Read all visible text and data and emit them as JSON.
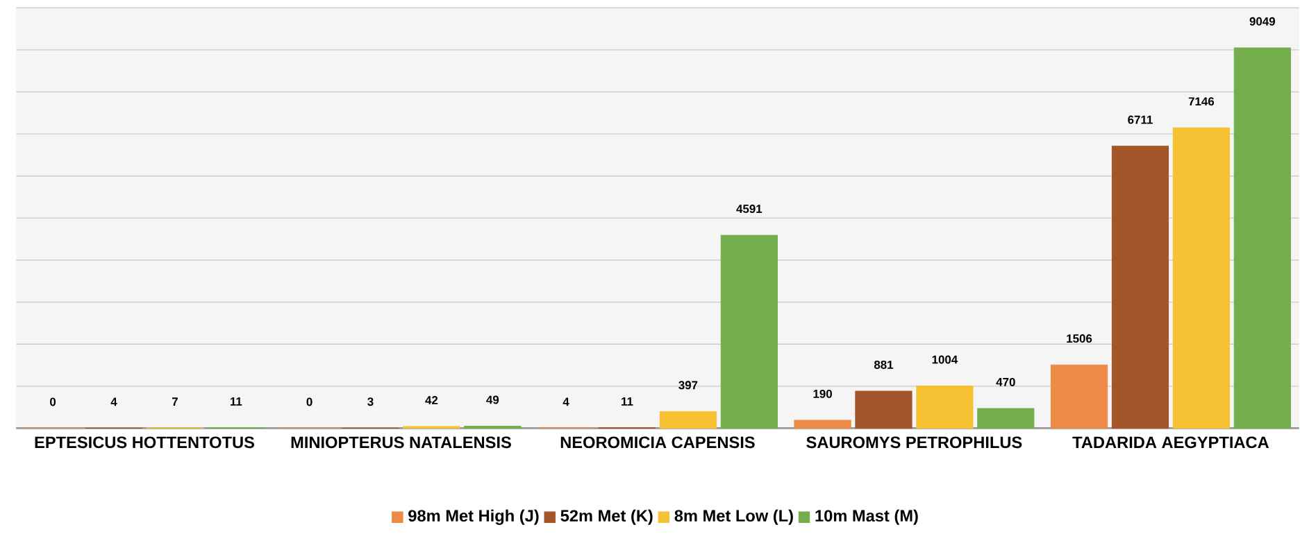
{
  "chart_data": {
    "type": "bar",
    "categories": [
      "EPTESICUS HOTTENTOTUS",
      "MINIOPTERUS NATALENSIS",
      "NEOROMICIA CAPENSIS",
      "SAUROMYS PETROPHILUS",
      "TADARIDA AEGYPTIACA"
    ],
    "series": [
      {
        "name": "98m Met High (J)",
        "color": "#ed8a45",
        "values": [
          0,
          0,
          4,
          190,
          1506
        ]
      },
      {
        "name": "52m Met (K)",
        "color": "#a5552a",
        "values": [
          4,
          3,
          11,
          881,
          6711
        ]
      },
      {
        "name": "8m Met Low (L)",
        "color": "#f6c132",
        "values": [
          7,
          42,
          397,
          1004,
          7146
        ]
      },
      {
        "name": "10m Mast (M)",
        "color": "#74ad4c",
        "values": [
          11,
          49,
          4591,
          470,
          9049
        ]
      }
    ],
    "ylim": [
      0,
      10000
    ],
    "yticks": [
      {
        "value": 0,
        "label": null
      },
      {
        "value": 1000,
        "label": null
      },
      {
        "value": 2000,
        "label": null
      },
      {
        "value": 3000,
        "label": null
      },
      {
        "value": 4000,
        "label": null
      },
      {
        "value": 5000,
        "label": null
      },
      {
        "value": 6000,
        "label": null
      },
      {
        "value": 7000,
        "label": null
      },
      {
        "value": 8000,
        "label": null
      },
      {
        "value": 9000,
        "label": null
      },
      {
        "value": 10000,
        "label": null
      }
    ],
    "grid": "y",
    "tick_labels": "x",
    "data_labels": true,
    "legend": "bottom"
  }
}
